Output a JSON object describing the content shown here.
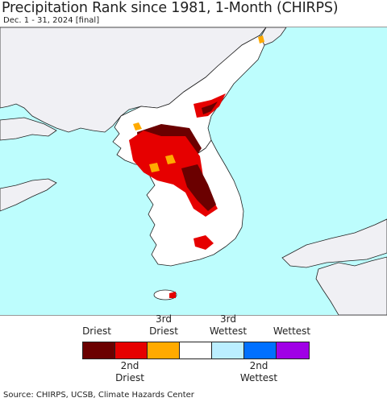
{
  "title": "Precipitation Rank since 1981, 1-Month (CHIRPS)",
  "subtitle": "Dec. 1 - 31, 2024 [final]",
  "colors": {
    "sea": "#bdfdfd",
    "land": "#f0f0f4",
    "land_in_domain": "#ffffff",
    "border": "#222222"
  },
  "legend": {
    "top_labels": [
      "Driest",
      "3rd\nDriest",
      "3rd\nWettest",
      "Wettest"
    ],
    "bottom_labels": [
      "2nd\nDriest",
      "2nd\nWettest"
    ],
    "swatches": [
      {
        "name": "driest",
        "color": "#6b0000"
      },
      {
        "name": "2nd-driest",
        "color": "#e60000"
      },
      {
        "name": "3rd-driest",
        "color": "#ffaa00"
      },
      {
        "name": "normal",
        "color": "#ffffff"
      },
      {
        "name": "3rd-wettest",
        "color": "#bbeeff"
      },
      {
        "name": "2nd-wettest",
        "color": "#0070ff"
      },
      {
        "name": "wettest",
        "color": "#a000e6"
      }
    ]
  },
  "footer": "Source: CHIRPS, UCSB, Climate Hazards Center"
}
